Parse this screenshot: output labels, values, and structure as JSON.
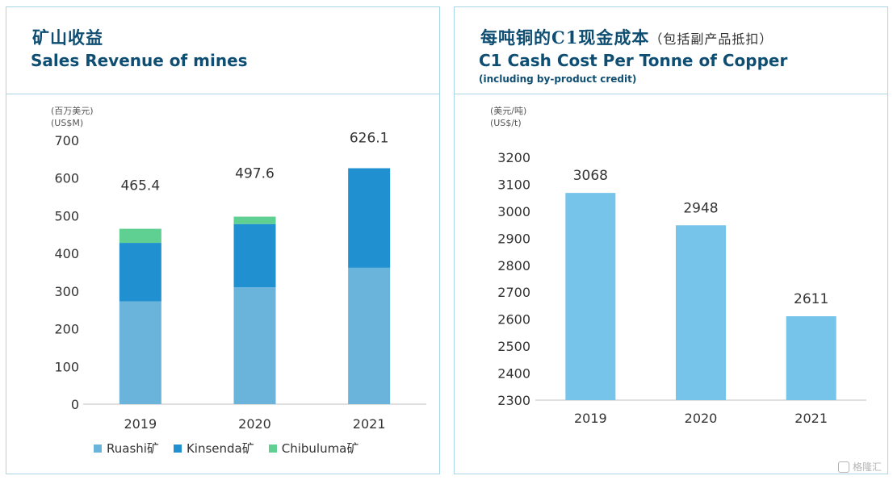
{
  "left": {
    "title_cn": "矿山收益",
    "title_en": "Sales Revenue of mines"
  },
  "right": {
    "title_cn": "每吨铜的C1现金成本",
    "title_cn_sub": "（包括副产品抵扣）",
    "title_en": "C1 Cash Cost Per Tonne of Copper",
    "title_en2": "(including by-product credit)"
  },
  "watermark": {
    "text": "格隆汇"
  },
  "chart_data": [
    {
      "type": "bar",
      "stacked": true,
      "title": "Sales Revenue of mines",
      "unit_cn": "(百万美元)",
      "unit_en": "(US$M)",
      "categories": [
        "2019",
        "2020",
        "2021"
      ],
      "series": [
        {
          "name": "Ruashi矿",
          "color": "#6ab3db",
          "values": [
            273,
            310,
            362
          ]
        },
        {
          "name": "Kinsenda矿",
          "color": "#2090d0",
          "values": [
            155,
            168,
            264.1
          ]
        },
        {
          "name": "Chibuluma矿",
          "color": "#5fcf92",
          "values": [
            37.4,
            19.6,
            0
          ]
        }
      ],
      "totals": [
        "465.4",
        "497.6",
        "626.1"
      ],
      "ylim": [
        0,
        700
      ],
      "yticks": [
        "0",
        "100",
        "200",
        "300",
        "400",
        "500",
        "600",
        "700"
      ],
      "grid": false,
      "legend": "bottom"
    },
    {
      "type": "bar",
      "title": "C1 Cash Cost Per Tonne of Copper",
      "unit_cn": "(美元/吨)",
      "unit_en": "(US$/t)",
      "categories": [
        "2019",
        "2020",
        "2021"
      ],
      "color": "#76c4ea",
      "values": [
        3068,
        2948,
        2611
      ],
      "labels": [
        "3068",
        "2948",
        "2611"
      ],
      "ylim": [
        2300,
        3200
      ],
      "yticks": [
        "2300",
        "2400",
        "2500",
        "2600",
        "2700",
        "2800",
        "2900",
        "3000",
        "3100",
        "3200"
      ],
      "grid": false
    }
  ]
}
